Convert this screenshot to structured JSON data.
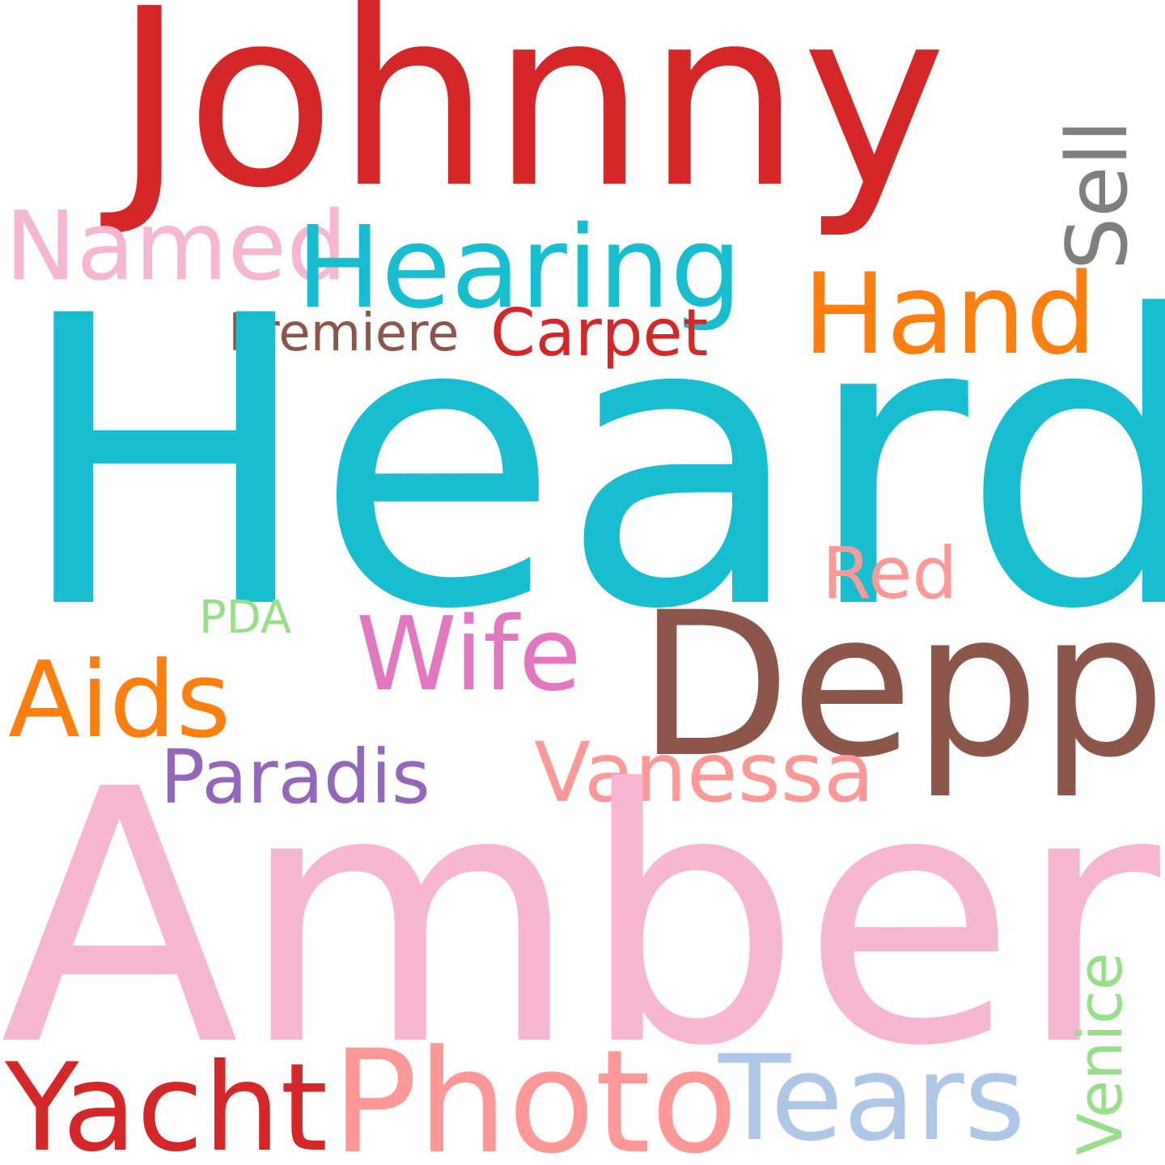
{
  "words": {
    "johnny": {
      "text": "Johnny",
      "color": "#d62728"
    },
    "sell": {
      "text": "Sell",
      "color": "#7f7f7f"
    },
    "named": {
      "text": "Named",
      "color": "#f7b6d2"
    },
    "hearing": {
      "text": "Hearing",
      "color": "#17becf"
    },
    "hand": {
      "text": "Hand",
      "color": "#ff7f0e"
    },
    "premiere": {
      "text": "Premiere",
      "color": "#8c564b"
    },
    "carpet": {
      "text": "Carpet",
      "color": "#d62728"
    },
    "heard": {
      "text": "Heard",
      "color": "#17becf"
    },
    "red": {
      "text": "Red",
      "color": "#ff9896"
    },
    "pda": {
      "text": "PDA",
      "color": "#98df8a"
    },
    "wife": {
      "text": "Wife",
      "color": "#e377c2"
    },
    "depp": {
      "text": "Depp",
      "color": "#8c564b"
    },
    "aids": {
      "text": "Aids",
      "color": "#ff7f0e"
    },
    "paradis": {
      "text": "Paradis",
      "color": "#9467bd"
    },
    "vanessa": {
      "text": "Vanessa",
      "color": "#ff9896"
    },
    "amber": {
      "text": "Amber",
      "color": "#f7b6d2"
    },
    "venice": {
      "text": "Venice",
      "color": "#98df8a"
    },
    "yacht": {
      "text": "Yacht",
      "color": "#d62728"
    },
    "photo": {
      "text": "Photo",
      "color": "#ff9896"
    },
    "tears": {
      "text": "Tears",
      "color": "#aec7e8"
    }
  }
}
